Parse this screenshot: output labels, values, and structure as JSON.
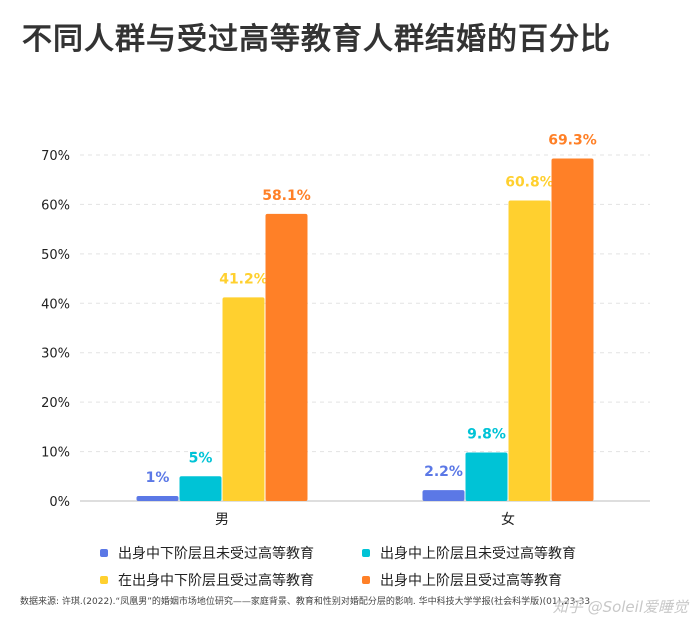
{
  "title": "不同人群与受过高等教育人群结婚的百分比",
  "chart_data": {
    "type": "bar",
    "categories": [
      "男",
      "女"
    ],
    "series": [
      {
        "name": "出身中下阶层且未受过高等教育",
        "values": [
          1,
          2.2
        ],
        "labels": [
          "1%",
          "2.2%"
        ],
        "color": "#5b78e6"
      },
      {
        "name": "出身中上阶层且未受过高等教育",
        "values": [
          5,
          9.8
        ],
        "labels": [
          "5%",
          "9.8%"
        ],
        "color": "#00c3d6"
      },
      {
        "name": "在出身中下阶层且受过高等教育",
        "values": [
          41.2,
          60.8
        ],
        "labels": [
          "41.2%",
          "60.8%"
        ],
        "color": "#ffd02f"
      },
      {
        "name": "出身中上阶层且受过高等教育",
        "values": [
          58.1,
          69.3
        ],
        "labels": [
          "58.1%",
          "69.3%"
        ],
        "color": "#ff8027"
      }
    ],
    "ylim": [
      0,
      70
    ],
    "yticks": [
      "0%",
      "10%",
      "20%",
      "30%",
      "40%",
      "50%",
      "60%",
      "70%"
    ],
    "ytick_values": [
      0,
      10,
      20,
      30,
      40,
      50,
      60,
      70
    ],
    "grid": true,
    "legend_position": "bottom"
  },
  "source": "数据来源: 许琪.(2022).“凤凰男”的婚姻市场地位研究——家庭背景、教育和性别对婚配分层的影响. 华中科技大学学报(社会科学版)(01),23-33.",
  "watermark": "知乎 @Soleil爱睡觉"
}
